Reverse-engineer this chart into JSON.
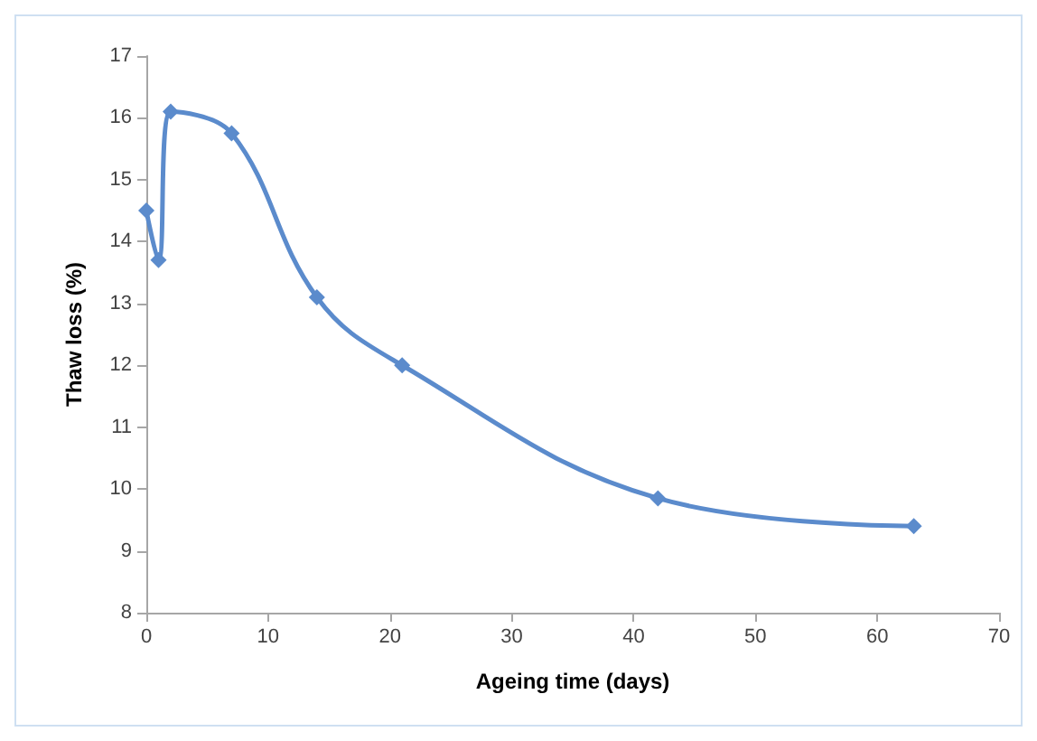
{
  "chart_data": {
    "type": "line",
    "xlabel": "Ageing time (days)",
    "ylabel": "Thaw loss (%)",
    "x": [
      0,
      1,
      2,
      7,
      14,
      21,
      42,
      63
    ],
    "series": [
      {
        "color": "#5b8bcc",
        "values": [
          14.5,
          13.7,
          16.1,
          15.75,
          13.1,
          12.0,
          9.85,
          9.4
        ]
      }
    ],
    "xlim": [
      0,
      70
    ],
    "xticks": [
      0,
      10,
      20,
      30,
      40,
      50,
      60,
      70
    ],
    "ylim": [
      8,
      17
    ],
    "yticks": [
      8,
      9,
      10,
      11,
      12,
      13,
      14,
      15,
      16,
      17
    ],
    "grid": false,
    "marker": "diamond",
    "line_style": "solid"
  }
}
